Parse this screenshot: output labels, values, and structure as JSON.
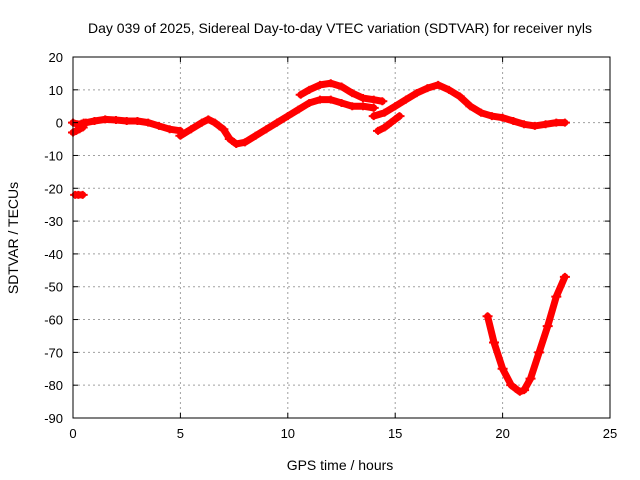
{
  "chart_data": {
    "type": "scatter",
    "title": "Day 039 of 2025, Sidereal Day-to-day VTEC variation (SDTVAR) for receiver nyls",
    "xlabel": "GPS time / hours",
    "ylabel": "SDTVAR / TECUs",
    "xlim": [
      0,
      25
    ],
    "ylim": [
      -90,
      20
    ],
    "xticks": [
      0,
      5,
      10,
      15,
      20,
      25
    ],
    "yticks": [
      20,
      10,
      0,
      -10,
      -20,
      -30,
      -40,
      -50,
      -60,
      -70,
      -80,
      -90
    ],
    "grid": true,
    "color": "#ff0000",
    "series": [
      {
        "name": "arc-start",
        "x": [
          0.0,
          0.15,
          0.3,
          0.45
        ],
        "y": [
          -3,
          -2.5,
          -2,
          -1.5
        ]
      },
      {
        "name": "arc-start-upper",
        "x": [
          0.0,
          0.2,
          0.4,
          0.5
        ],
        "y": [
          0,
          -0.5,
          -0.3,
          0
        ]
      },
      {
        "name": "arc-isolated",
        "x": [
          0.1,
          0.25,
          0.45
        ],
        "y": [
          -22,
          -22,
          -22
        ]
      },
      {
        "name": "arc-main-1",
        "x": [
          0.6,
          1.0,
          1.5,
          2.0,
          2.5,
          3.0,
          3.5,
          4.0,
          4.5,
          5.0
        ],
        "y": [
          0,
          0.5,
          1,
          0.8,
          0.5,
          0.5,
          0,
          -1,
          -2,
          -2.5
        ]
      },
      {
        "name": "arc-main-2",
        "x": [
          5.0,
          5.5,
          6.0,
          6.3,
          6.6,
          7.0,
          7.3,
          7.6,
          8.0,
          8.5,
          9.0,
          9.5,
          10.0,
          10.5,
          11.0,
          11.5,
          12.0,
          12.5,
          13.0,
          13.5,
          14.0
        ],
        "y": [
          -4,
          -2,
          0,
          1,
          0,
          -2,
          -5,
          -6.5,
          -6,
          -4,
          -2,
          0,
          2,
          4,
          6,
          7,
          7,
          6,
          5,
          5,
          4.5
        ]
      },
      {
        "name": "arc-upper",
        "x": [
          10.6,
          11.0,
          11.5,
          12.0,
          12.5,
          13.0,
          13.5,
          14.0,
          14.4
        ],
        "y": [
          8.5,
          10,
          11.5,
          12,
          11,
          9,
          7.5,
          7,
          6.5
        ]
      },
      {
        "name": "arc-mid-low",
        "x": [
          14.2,
          14.5,
          14.8,
          15.2
        ],
        "y": [
          -2.5,
          -1.5,
          0,
          2
        ]
      },
      {
        "name": "arc-main-3",
        "x": [
          14.0,
          14.5,
          15.0,
          15.5,
          16.0,
          16.5,
          17.0,
          17.5,
          18.0,
          18.5,
          19.0,
          19.5,
          20.0,
          20.5,
          21.0,
          21.5,
          22.0,
          22.5,
          22.9
        ],
        "y": [
          2,
          3,
          5,
          7,
          9,
          10.5,
          11.5,
          10,
          8,
          5,
          3,
          2,
          1.5,
          0.5,
          -0.5,
          -1,
          -0.5,
          0,
          0
        ]
      },
      {
        "name": "arc-dip",
        "x": [
          19.3,
          19.6,
          20.0,
          20.4,
          20.8,
          21.0,
          21.3,
          21.7,
          22.1,
          22.5,
          22.9
        ],
        "y": [
          -59,
          -67,
          -75,
          -80,
          -82,
          -81.5,
          -78,
          -70,
          -62,
          -53,
          -47
        ]
      }
    ]
  }
}
